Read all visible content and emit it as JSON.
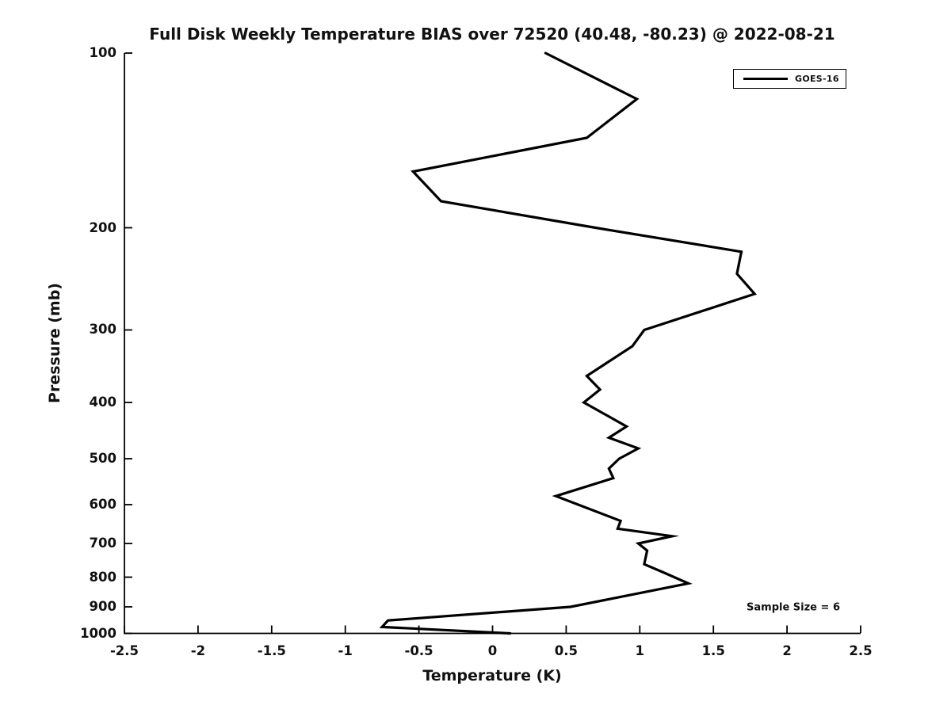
{
  "figure": {
    "background_color": "#ffffff",
    "text_color": "#111111",
    "line_color": "#000000"
  },
  "legend": {
    "entries": [
      {
        "label": "GOES-16",
        "color": "#000000"
      }
    ]
  },
  "chart_data": {
    "type": "line",
    "title": "Full Disk Weekly Temperature BIAS over 72520 (40.48, -80.23) @ 2022-08-21",
    "xlabel": "Temperature (K)",
    "ylabel": "Pressure (mb)",
    "xlim": [
      -2.5,
      2.5
    ],
    "x_ticks": [
      -2.5,
      -2,
      -1.5,
      -1,
      -0.5,
      0,
      0.5,
      1,
      1.5,
      2,
      2.5
    ],
    "x_tick_labels": [
      "-2.5",
      "-2",
      "-1.5",
      "-1",
      "-0.5",
      "0",
      "0.5",
      "1",
      "1.5",
      "2",
      "2.5"
    ],
    "ylim": [
      100,
      1000
    ],
    "y_scale": "log",
    "y_inverted": true,
    "y_ticks": [
      100,
      200,
      300,
      400,
      500,
      600,
      700,
      800,
      900,
      1000
    ],
    "y_tick_labels": [
      "100",
      "200",
      "300",
      "400",
      "500",
      "600",
      "700",
      "800",
      "900",
      "1000"
    ],
    "grid": false,
    "legend_position": "upper-right",
    "annotation": "Sample Size = 6",
    "series": [
      {
        "name": "GOES-16",
        "color": "#000000",
        "points_are": "[temperature_bias_K, pressure_mb]",
        "points": [
          [
            0.36,
            100
          ],
          [
            0.98,
            120
          ],
          [
            0.64,
            140
          ],
          [
            -0.54,
            160
          ],
          [
            -0.35,
            180
          ],
          [
            0.7,
            200
          ],
          [
            1.69,
            220
          ],
          [
            1.66,
            240
          ],
          [
            1.78,
            260
          ],
          [
            1.03,
            300
          ],
          [
            0.95,
            320
          ],
          [
            0.64,
            360
          ],
          [
            0.73,
            380
          ],
          [
            0.62,
            400
          ],
          [
            0.91,
            440
          ],
          [
            0.79,
            460
          ],
          [
            0.99,
            480
          ],
          [
            0.86,
            500
          ],
          [
            0.79,
            520
          ],
          [
            0.82,
            540
          ],
          [
            0.43,
            580
          ],
          [
            0.87,
            640
          ],
          [
            0.85,
            660
          ],
          [
            1.22,
            680
          ],
          [
            0.99,
            700
          ],
          [
            1.05,
            720
          ],
          [
            1.03,
            760
          ],
          [
            1.16,
            785
          ],
          [
            1.33,
            820
          ],
          [
            0.53,
            900
          ],
          [
            -0.71,
            950
          ],
          [
            -0.75,
            975
          ],
          [
            0.12,
            1000
          ]
        ]
      }
    ]
  }
}
